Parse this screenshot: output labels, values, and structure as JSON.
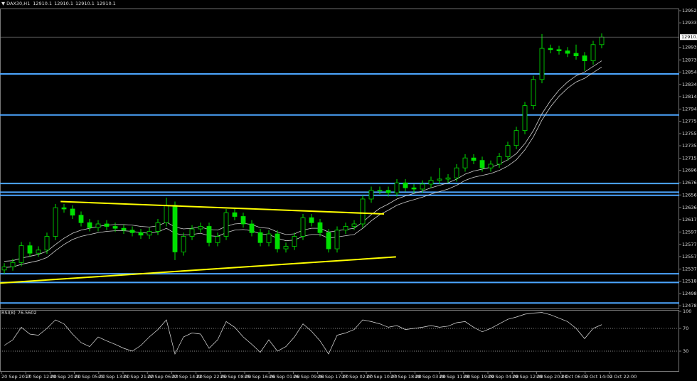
{
  "chart_data": {
    "type": "candlestick",
    "title": "DAX30,H1",
    "quote": [
      12910.1,
      12910.1,
      12910.1,
      12910.1
    ],
    "up_color": "#00e000",
    "down_color": "#00e000",
    "ma_color": "#d0d0d0",
    "ylim": [
      12473,
      12956
    ],
    "yticks": [
      12952.5,
      {
        "value": 12933.0,
        "label": "12933.0"
      },
      12893.5,
      12873.5,
      {
        "value": 12854.0,
        "label": "12854.0"
      },
      {
        "value": 12834.0,
        "label": "12834.0"
      },
      12814.5,
      12794.5,
      {
        "value": 12775.0,
        "label": "12775.0"
      },
      {
        "value": 12755.0,
        "label": "12755.0"
      },
      12735.5,
      12715.5,
      {
        "value": 12696.0,
        "label": "12696.0"
      },
      {
        "value": 12676.0,
        "label": "12676.0"
      },
      12656.5,
      12636.5,
      {
        "value": 12617.0,
        "label": "12617.0"
      },
      {
        "value": 12597.0,
        "label": "12597.0"
      },
      {
        "value": 12577.0,
        "label": "12577.0"
      },
      12557.5,
      12537.5,
      {
        "value": 12518.0,
        "label": "12518.0"
      },
      {
        "value": 12498.0,
        "label": "12498.0"
      },
      12478.5
    ],
    "xticks": [
      "20 Sep 2017",
      "20 Sep 12:00",
      "20 Sep 20:00",
      "21 Sep 05:00",
      "21 Sep 13:00",
      "21 Sep 21:00",
      "22 Sep 06:00",
      "22 Sep 14:00",
      "22 Sep 22:00",
      "25 Sep 08:00",
      "25 Sep 16:00",
      "26 Sep 01:00",
      "26 Sep 09:00",
      "26 Sep 17:00",
      "27 Sep 02:00",
      "27 Sep 10:00",
      "27 Sep 18:00",
      "28 Sep 03:00",
      "28 Sep 11:00",
      "28 Sep 19:00",
      "29 Sep 04:00",
      "29 Sep 12:00",
      "29 Sep 20:00",
      "2 Oct 06:00",
      "2 Oct 14:00",
      "2 Oct 22:00"
    ],
    "open": [
      12536,
      12541,
      12548,
      12575,
      12563,
      12568,
      12590,
      12636,
      12634,
      12624,
      12612,
      12604,
      12610,
      12606,
      12603,
      12600,
      12596,
      12592,
      12598,
      12612,
      12640,
      12565,
      12590,
      12602,
      12606,
      12580,
      12590,
      12628,
      12622,
      12610,
      12596,
      12580,
      12594,
      12570,
      12574,
      12590,
      12620,
      12612,
      12596,
      12570,
      12600,
      12606,
      12610,
      12650,
      12664,
      12664,
      12660,
      12676,
      12668,
      12666,
      12674,
      12680,
      12682,
      12684,
      12700,
      12716,
      12712,
      12700,
      12706,
      12718,
      12736,
      12760,
      12800,
      12842,
      12892,
      12890,
      12888,
      12884,
      12880,
      12872,
      12898
    ],
    "high": [
      12547,
      12554,
      12581,
      12581,
      12574,
      12596,
      12642,
      12642,
      12640,
      12630,
      12618,
      12616,
      12616,
      12612,
      12609,
      12606,
      12602,
      12604,
      12618,
      12652,
      12646,
      12596,
      12608,
      12612,
      12612,
      12596,
      12634,
      12634,
      12628,
      12616,
      12602,
      12600,
      12600,
      12580,
      12596,
      12626,
      12626,
      12618,
      12602,
      12606,
      12612,
      12616,
      12656,
      12670,
      12670,
      12670,
      12682,
      12682,
      12674,
      12680,
      12686,
      12700,
      12690,
      12706,
      12722,
      12722,
      12718,
      12712,
      12724,
      12742,
      12766,
      12806,
      12848,
      12915,
      12898,
      12896,
      12894,
      12898,
      12886,
      12904,
      12916
    ],
    "low": [
      12530,
      12535,
      12542,
      12557,
      12557,
      12562,
      12584,
      12628,
      12618,
      12606,
      12598,
      12598,
      12600,
      12597,
      12594,
      12590,
      12586,
      12586,
      12592,
      12606,
      12552,
      12559,
      12584,
      12596,
      12574,
      12574,
      12584,
      12616,
      12604,
      12590,
      12574,
      12574,
      12564,
      12564,
      12568,
      12584,
      12606,
      12590,
      12564,
      12564,
      12594,
      12600,
      12604,
      12644,
      12658,
      12654,
      12654,
      12662,
      12660,
      12660,
      12668,
      12674,
      12676,
      12678,
      12694,
      12706,
      12694,
      12694,
      12700,
      12712,
      12730,
      12754,
      12794,
      12836,
      12884,
      12882,
      12878,
      12874,
      12856,
      12866,
      12892
    ],
    "close": [
      12541,
      12548,
      12575,
      12563,
      12568,
      12590,
      12636,
      12634,
      12624,
      12612,
      12604,
      12610,
      12606,
      12603,
      12600,
      12596,
      12592,
      12598,
      12612,
      12640,
      12565,
      12590,
      12602,
      12606,
      12580,
      12590,
      12628,
      12622,
      12610,
      12596,
      12580,
      12594,
      12570,
      12574,
      12590,
      12620,
      12612,
      12596,
      12570,
      12600,
      12606,
      12610,
      12650,
      12664,
      12664,
      12660,
      12676,
      12668,
      12666,
      12674,
      12680,
      12682,
      12684,
      12700,
      12716,
      12712,
      12700,
      12706,
      12718,
      12736,
      12760,
      12800,
      12842,
      12892,
      12890,
      12888,
      12884,
      12880,
      12872,
      12898,
      12910.1
    ],
    "ma_upper": [
      12550,
      12551,
      12555,
      12558,
      12561,
      12566,
      12577,
      12587,
      12595,
      12600,
      12603,
      12606,
      12608,
      12609,
      12609,
      12608,
      12606,
      12605,
      12607,
      12613,
      12605,
      12602,
      12603,
      12605,
      12601,
      12600,
      12606,
      12610,
      12611,
      12609,
      12604,
      12603,
      12597,
      12593,
      12594,
      12600,
      12603,
      12603,
      12597,
      12599,
      12601,
      12603,
      12613,
      12625,
      12635,
      12642,
      12650,
      12655,
      12659,
      12663,
      12668,
      12672,
      12676,
      12682,
      12690,
      12695,
      12698,
      12701,
      12706,
      12713,
      12723,
      12739,
      12760,
      12787,
      12808,
      12825,
      12838,
      12848,
      12854,
      12863,
      12872
    ],
    "ma_lower": [
      12540,
      12541,
      12545,
      12548,
      12551,
      12556,
      12567,
      12577,
      12585,
      12590,
      12593,
      12596,
      12598,
      12599,
      12599,
      12598,
      12596,
      12595,
      12597,
      12603,
      12595,
      12592,
      12593,
      12595,
      12591,
      12590,
      12596,
      12600,
      12601,
      12599,
      12594,
      12593,
      12587,
      12583,
      12584,
      12590,
      12593,
      12593,
      12587,
      12589,
      12591,
      12593,
      12603,
      12615,
      12625,
      12632,
      12640,
      12645,
      12649,
      12653,
      12658,
      12662,
      12666,
      12672,
      12680,
      12685,
      12688,
      12691,
      12696,
      12703,
      12713,
      12729,
      12750,
      12777,
      12798,
      12815,
      12828,
      12838,
      12844,
      12853,
      12862
    ],
    "levels": [
      12851,
      12785,
      12675,
      12661,
      12656,
      12530,
      12516,
      12483
    ],
    "level_color": "#4da6ff",
    "trendlines": [
      {
        "x": [
          6.6,
          44.5
        ],
        "y": [
          12646,
          12626
        ],
        "color": "#ffff00"
      },
      {
        "x": [
          -0.5,
          45.9
        ],
        "y": [
          12515,
          12557
        ],
        "color": "#ffff00"
      }
    ],
    "rsi": {
      "label": "RSI(8)",
      "ylim": [
        0,
        100
      ],
      "yticks": [
        100,
        70,
        30
      ],
      "levels": [
        70,
        30
      ],
      "color": "#e0e0e0",
      "values": [
        40,
        50,
        72,
        60,
        58,
        70,
        85,
        78,
        60,
        45,
        38,
        55,
        48,
        42,
        35,
        30,
        40,
        55,
        68,
        85,
        25,
        55,
        62,
        60,
        35,
        50,
        82,
        72,
        55,
        42,
        28,
        50,
        30,
        38,
        55,
        78,
        65,
        48,
        25,
        58,
        62,
        68,
        85,
        82,
        78,
        72,
        75,
        68,
        70,
        72,
        75,
        72,
        74,
        80,
        82,
        72,
        64,
        70,
        78,
        86,
        90,
        95,
        97,
        98,
        94,
        88,
        82,
        70,
        52,
        70,
        76.5602
      ]
    }
  }
}
